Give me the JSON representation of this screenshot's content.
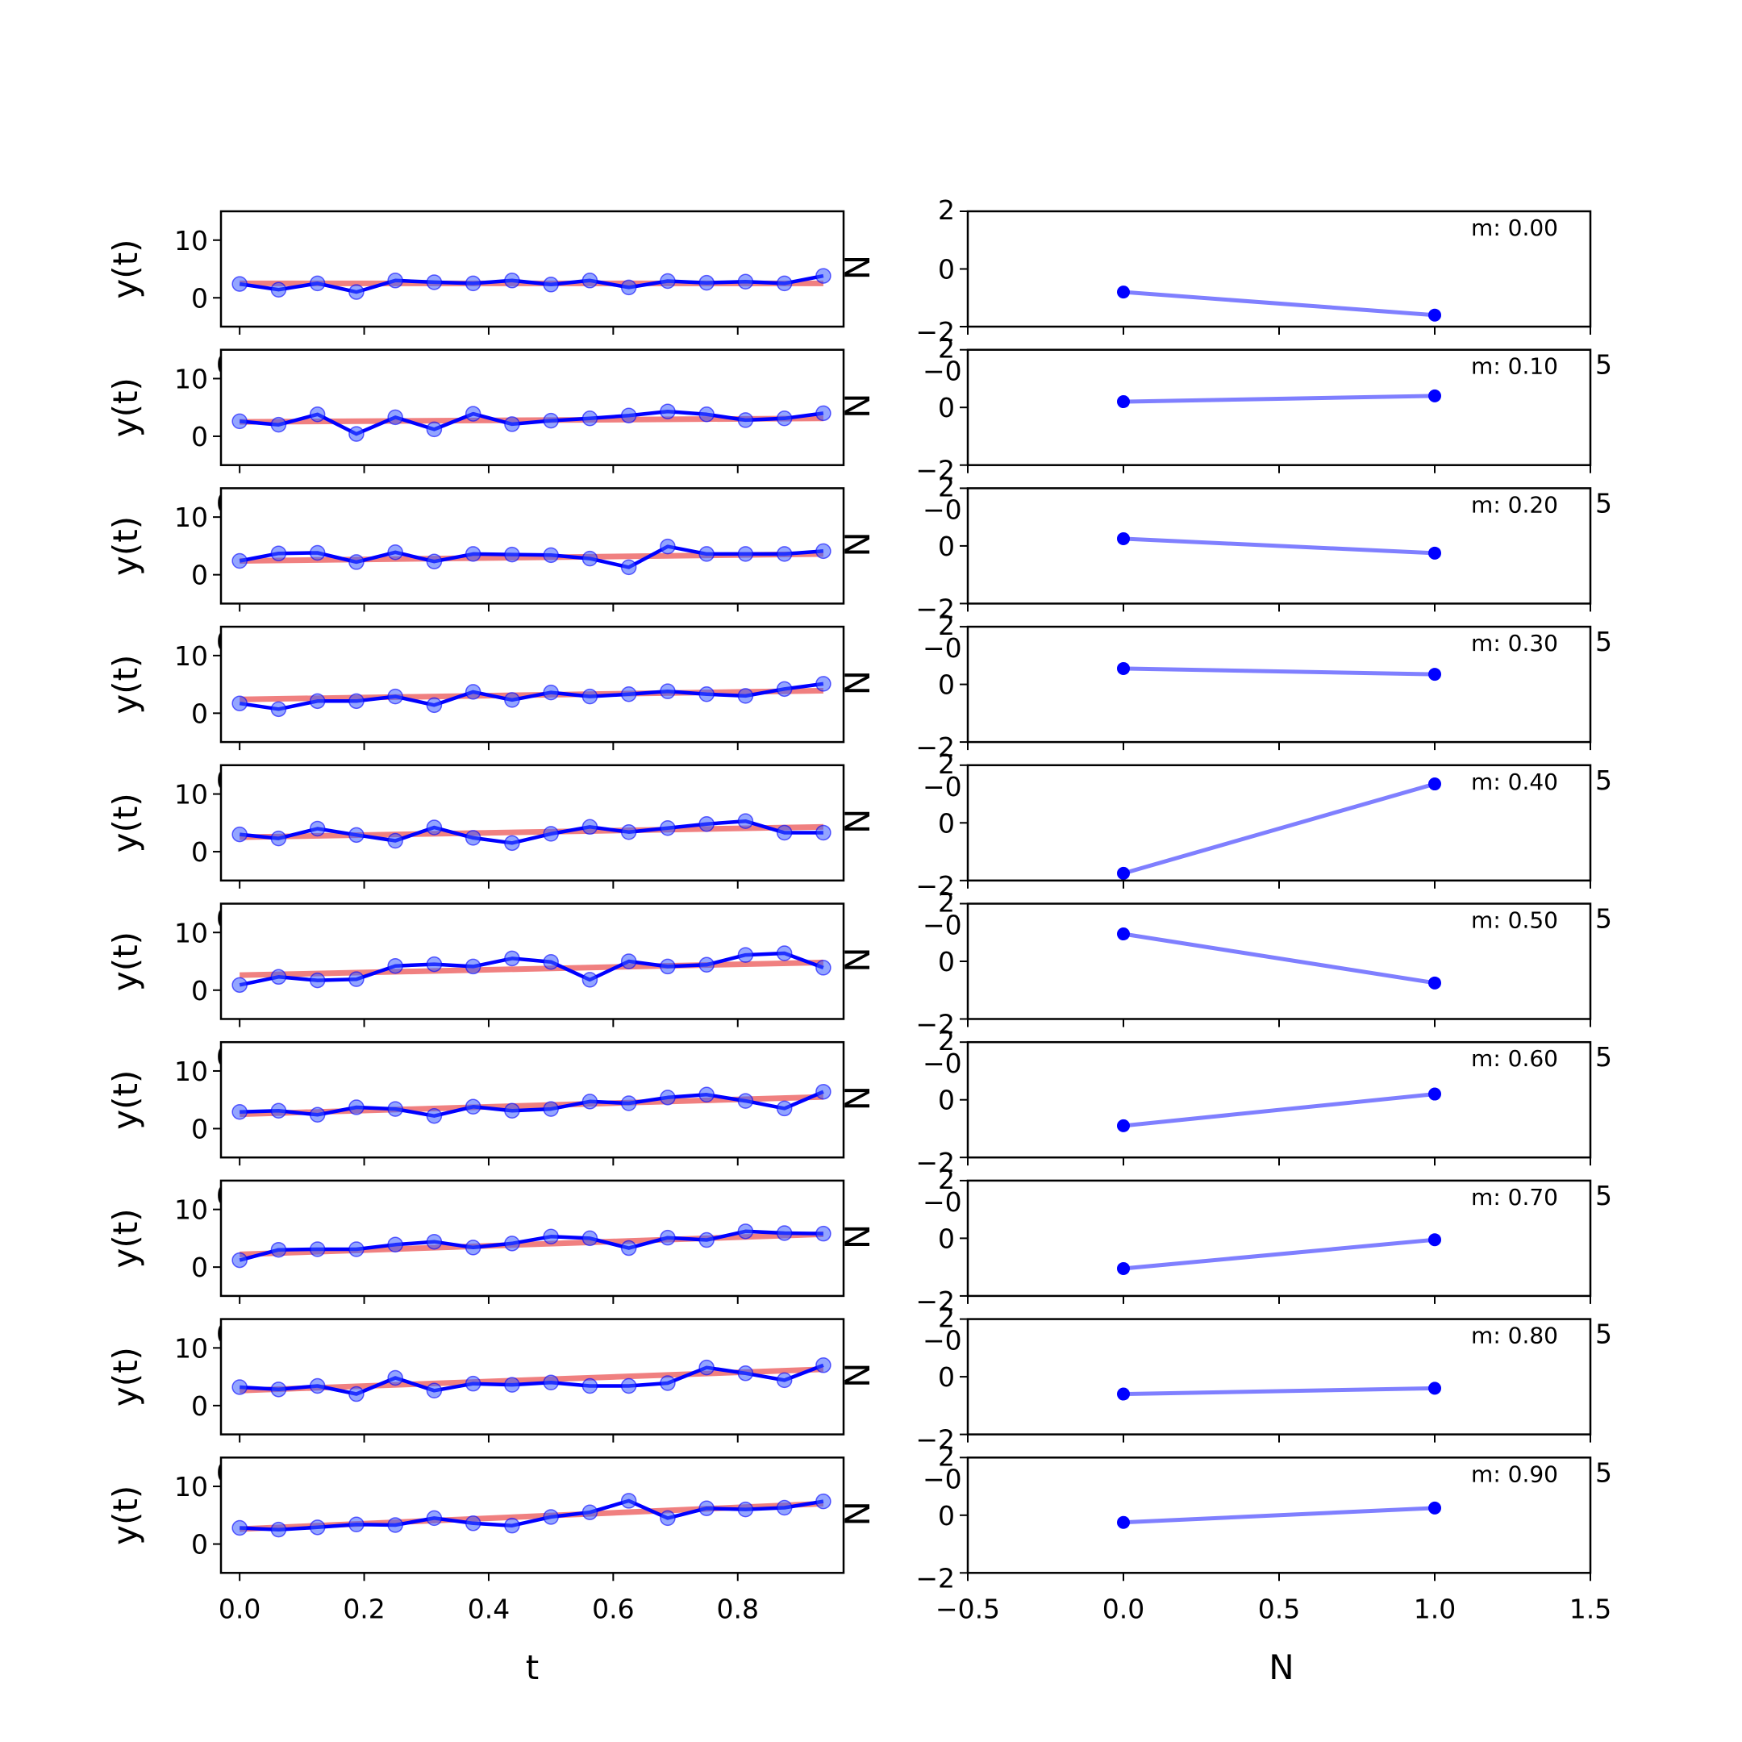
{
  "chart_data": [
    {
      "type": "line",
      "panel": "left",
      "xlabel": "t",
      "ylabel": "y(t)",
      "xlim": [
        -0.03,
        0.97
      ],
      "ylim": [
        -5,
        15
      ],
      "yticks": [
        0,
        10
      ],
      "yticklabels": [
        "0",
        "10"
      ],
      "xticks": [
        0.0,
        0.2,
        0.4,
        0.6,
        0.8
      ],
      "xticklabels": [
        "0.0",
        "0.2",
        "0.4",
        "0.6",
        "0.8"
      ],
      "x": [
        0.0,
        0.0625,
        0.125,
        0.1875,
        0.25,
        0.3125,
        0.375,
        0.4375,
        0.5,
        0.5625,
        0.625,
        0.6875,
        0.75,
        0.8125,
        0.875,
        0.9375
      ],
      "series_colors": {
        "data": "#0000ff",
        "fit": "#f08080"
      },
      "rows": [
        {
          "y": [
            2.4,
            1.4,
            2.5,
            1.0,
            3.0,
            2.7,
            2.5,
            3.0,
            2.3,
            3.0,
            1.8,
            2.9,
            2.6,
            2.8,
            2.5,
            3.8
          ],
          "fit": [
            2.5,
            2.5
          ]
        },
        {
          "y": [
            2.6,
            2.0,
            3.8,
            0.4,
            3.3,
            1.2,
            3.9,
            2.1,
            2.7,
            3.1,
            3.6,
            4.3,
            3.8,
            2.8,
            3.1,
            4.0
          ],
          "fit": [
            2.5,
            3.1
          ]
        },
        {
          "y": [
            2.4,
            3.7,
            3.8,
            2.2,
            3.9,
            2.3,
            3.6,
            3.5,
            3.4,
            2.8,
            1.3,
            4.9,
            3.6,
            3.6,
            3.6,
            4.1
          ],
          "fit": [
            2.4,
            3.6
          ]
        },
        {
          "y": [
            1.7,
            0.7,
            2.1,
            2.1,
            2.9,
            1.4,
            3.7,
            2.3,
            3.6,
            2.9,
            3.3,
            3.8,
            3.3,
            3.0,
            4.2,
            5.1
          ],
          "fit": [
            2.4,
            3.9
          ]
        },
        {
          "y": [
            3.0,
            2.3,
            4.0,
            2.9,
            1.9,
            4.2,
            2.4,
            1.5,
            3.1,
            4.3,
            3.4,
            4.1,
            4.8,
            5.3,
            3.3,
            3.3
          ],
          "fit": [
            2.5,
            4.3
          ]
        },
        {
          "y": [
            0.9,
            2.3,
            1.7,
            1.9,
            4.2,
            4.5,
            4.1,
            5.5,
            4.9,
            1.8,
            5.0,
            4.1,
            4.4,
            6.1,
            6.4,
            3.9
          ],
          "fit": [
            2.6,
            4.8
          ]
        },
        {
          "y": [
            2.9,
            3.1,
            2.4,
            3.7,
            3.4,
            2.2,
            3.8,
            3.1,
            3.4,
            4.7,
            4.4,
            5.4,
            5.9,
            4.8,
            3.5,
            6.4
          ],
          "fit": [
            2.5,
            5.5
          ]
        },
        {
          "y": [
            1.2,
            3.0,
            3.1,
            3.1,
            3.9,
            4.4,
            3.4,
            4.1,
            5.3,
            5.0,
            3.3,
            5.1,
            4.7,
            6.2,
            5.9,
            5.8
          ],
          "fit": [
            2.2,
            5.7
          ]
        },
        {
          "y": [
            3.2,
            2.8,
            3.4,
            2.0,
            4.8,
            2.6,
            3.8,
            3.6,
            4.0,
            3.4,
            3.4,
            3.9,
            6.6,
            5.6,
            4.4,
            7.0
          ],
          "fit": [
            2.6,
            6.3
          ]
        },
        {
          "y": [
            2.8,
            2.5,
            2.9,
            3.4,
            3.3,
            4.5,
            3.6,
            3.2,
            4.7,
            5.5,
            7.5,
            4.5,
            6.2,
            6.0,
            6.3,
            7.4
          ],
          "fit": [
            2.6,
            7.0
          ]
        }
      ]
    },
    {
      "type": "line",
      "panel": "right",
      "xlabel": "N",
      "xlim": [
        -0.5,
        1.5
      ],
      "ylim": [
        -2,
        2
      ],
      "yticks": [
        -2,
        0,
        2
      ],
      "yticklabels": [
        "−2",
        "0",
        "2"
      ],
      "xticks": [
        -0.5,
        0.0,
        0.5,
        1.0,
        1.5
      ],
      "xticklabels": [
        "−0.5",
        "0.0",
        "0.5",
        "1.0",
        "1.5"
      ],
      "x": [
        0,
        1
      ],
      "series_color": "#0000ff",
      "rows": [
        {
          "label": "m: 0.00",
          "y": [
            -0.8,
            -1.6
          ]
        },
        {
          "label": "m: 0.10",
          "y": [
            0.2,
            0.4
          ]
        },
        {
          "label": "m: 0.20",
          "y": [
            0.25,
            -0.25
          ]
        },
        {
          "label": "m: 0.30",
          "y": [
            0.55,
            0.35
          ]
        },
        {
          "label": "m: 0.40",
          "y": [
            -1.75,
            1.35
          ]
        },
        {
          "label": "m: 0.50",
          "y": [
            0.95,
            -0.75
          ]
        },
        {
          "label": "m: 0.60",
          "y": [
            -0.9,
            0.2
          ]
        },
        {
          "label": "m: 0.70",
          "y": [
            -1.05,
            -0.05
          ]
        },
        {
          "label": "m: 0.80",
          "y": [
            -0.6,
            -0.4
          ]
        },
        {
          "label": "m: 0.90",
          "y": [
            -0.25,
            0.25
          ]
        }
      ]
    }
  ],
  "artifacts": {
    "ghost_right_label_left_panel": "N",
    "ghost_left_tick_right_panel": "−0",
    "ghost_right_tick_right_panel": "5",
    "ghost_left_tick_left_panel": "0"
  }
}
